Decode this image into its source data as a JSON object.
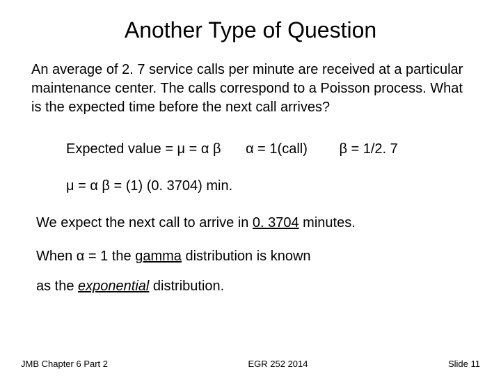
{
  "title": "Another Type of Question",
  "problem": "An average of 2. 7 service calls per minute are received at a particular maintenance center. The calls correspond to a Poisson process. What is the expected time before the next call arrives?",
  "formula": {
    "expected": "Expected value = μ = α β",
    "alpha": "α = 1(call)",
    "beta": "β = 1/2. 7"
  },
  "calculation": "μ = α β =  (1) (0. 3704) min.",
  "conclusion_pre": "We expect the next call to arrive in ",
  "conclusion_value": "0. 3704",
  "conclusion_post": " minutes.",
  "alpha_line_pre": "When α = 1 the ",
  "alpha_line_mid": "gamma",
  "alpha_line_post": " distribution is known",
  "expo_pre": "as the ",
  "expo_mid": "exponential",
  "expo_post": " distribution.",
  "footer": {
    "left": "JMB Chapter 6 Part 2",
    "center": "EGR 252 2014",
    "right": "Slide  11"
  },
  "colors": {
    "background": "#ffffff",
    "text": "#000000"
  },
  "fontsizes": {
    "title": 32,
    "body": 20,
    "footer": 13
  }
}
